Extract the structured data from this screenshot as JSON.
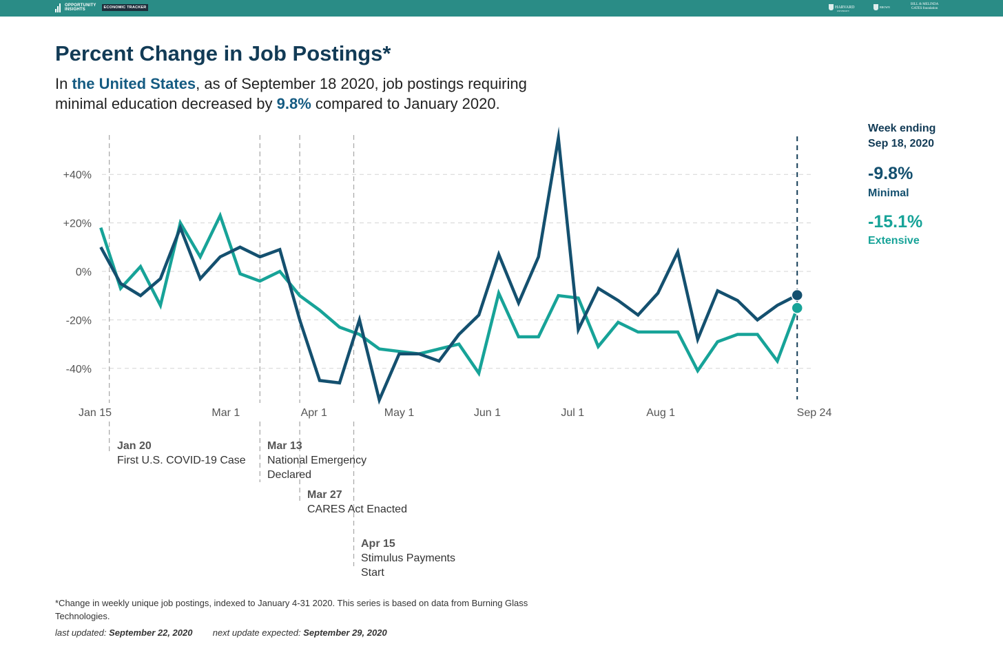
{
  "header": {
    "logo_line1": "OPPORTUNITY",
    "logo_line2": "INSIGHTS",
    "tracker_badge": "ECONOMIC TRACKER",
    "partner_harvard": "HARVARD",
    "partner_harvard_sub": "UNIVERSITY",
    "partner_brown": "BROWN",
    "partner_gates_line1": "BILL & MELINDA",
    "partner_gates_line2": "GATES foundation"
  },
  "title": "Percent Change in Job Postings*",
  "subtitle": {
    "pre": "In ",
    "place": "the United States",
    "mid": ", as of September 18 2020, job postings requiring minimal education decreased by ",
    "value": "9.8%",
    "post": " compared to January 2020."
  },
  "sidebar": {
    "week_line1": "Week ending",
    "week_line2": "Sep 18, 2020",
    "minimal_value": "-9.8%",
    "minimal_label": "Minimal",
    "extensive_value": "-15.1%",
    "extensive_label": "Extensive"
  },
  "events": [
    {
      "date": "Jan 20",
      "text": "First U.S. COVID-19 Case"
    },
    {
      "date": "Mar 13",
      "text": "National Emergency Declared"
    },
    {
      "date": "Mar 27",
      "text": "CARES Act Enacted"
    },
    {
      "date": "Apr 15",
      "text": "Stimulus Payments Start"
    }
  ],
  "footnote": "*Change in weekly unique job postings, indexed to January 4-31 2020. This series is based on data from Burning Glass Technologies.",
  "updated": {
    "last_label": "last updated: ",
    "last_date": "September 22, 2020",
    "next_label": "next update expected: ",
    "next_date": "September 29, 2020"
  },
  "colors": {
    "minimal": "#14506f",
    "extensive": "#17a398",
    "header": "#2a8c86",
    "title": "#123b56"
  },
  "chart_data": {
    "type": "line",
    "ylim": [
      -52,
      55
    ],
    "yticks": [
      40,
      20,
      0,
      -20,
      -40
    ],
    "ytick_labels": [
      "+40%",
      "+20%",
      "0%",
      "-20%",
      "-40%"
    ],
    "xtick_labels": [
      "Jan 15",
      "Mar 1",
      "Apr 1",
      "May 1",
      "Jun 1",
      "Jul 1",
      "Aug 1",
      "Sep 24"
    ],
    "xtick_dates": [
      "2020-01-15",
      "2020-03-01",
      "2020-04-01",
      "2020-05-01",
      "2020-06-01",
      "2020-07-01",
      "2020-08-01",
      "2020-09-24"
    ],
    "grid": true,
    "event_dates": [
      "2020-01-20",
      "2020-03-13",
      "2020-03-27",
      "2020-04-15"
    ],
    "marker_date": "2020-09-18",
    "x": [
      "2020-01-17",
      "2020-01-24",
      "2020-01-31",
      "2020-02-07",
      "2020-02-14",
      "2020-02-21",
      "2020-02-28",
      "2020-03-06",
      "2020-03-13",
      "2020-03-20",
      "2020-03-27",
      "2020-04-03",
      "2020-04-10",
      "2020-04-17",
      "2020-04-24",
      "2020-05-01",
      "2020-05-08",
      "2020-05-15",
      "2020-05-22",
      "2020-05-29",
      "2020-06-05",
      "2020-06-12",
      "2020-06-19",
      "2020-06-26",
      "2020-07-03",
      "2020-07-10",
      "2020-07-17",
      "2020-07-24",
      "2020-07-31",
      "2020-08-07",
      "2020-08-14",
      "2020-08-21",
      "2020-08-28",
      "2020-09-04",
      "2020-09-11",
      "2020-09-18"
    ],
    "series": [
      {
        "name": "Minimal",
        "color": "#14506f",
        "values": [
          10,
          -5,
          -10,
          -3,
          18,
          -3,
          6,
          10,
          6,
          9,
          -20,
          -45,
          -46,
          -20,
          -53,
          -34,
          -34,
          -37,
          -26,
          -18,
          7,
          -13,
          6,
          55,
          -24,
          -7,
          -12,
          -18,
          -9,
          8,
          -28,
          -8,
          -12,
          -20,
          -14,
          -9.8
        ]
      },
      {
        "name": "Extensive",
        "color": "#17a398",
        "values": [
          18,
          -7,
          2,
          -14,
          20,
          6,
          23,
          -1,
          -4,
          0,
          -10,
          -16,
          -23,
          -26,
          -32,
          -33,
          -34,
          -32,
          -30,
          -42,
          -9,
          -27,
          -27,
          -10,
          -11,
          -31,
          -21,
          -25,
          -25,
          -25,
          -41,
          -29,
          -26,
          -26,
          -37,
          -15.1
        ]
      }
    ]
  }
}
